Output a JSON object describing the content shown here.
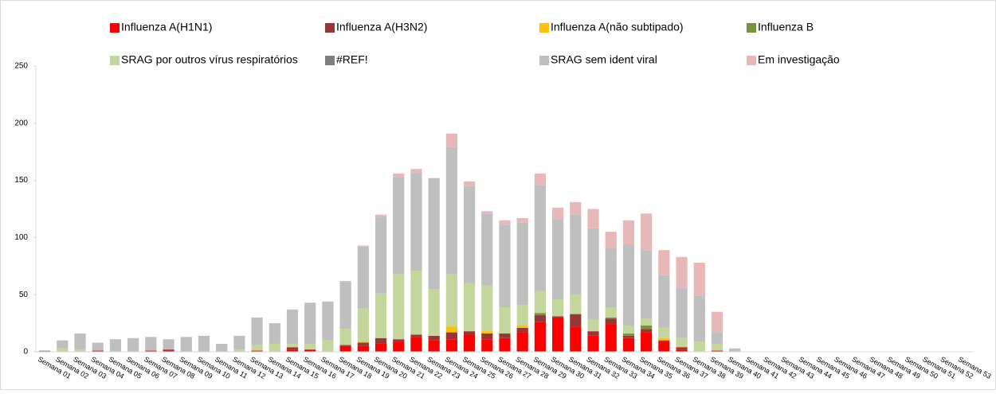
{
  "chart_data": {
    "type": "stacked_bar",
    "categories": [
      "Semana 01",
      "Semana 02",
      "Semana 03",
      "Semana 04",
      "Semana 05",
      "Semana 06",
      "Semana 07",
      "Semana 08",
      "Semana 09",
      "Semana 10",
      "Semana 11",
      "Semana 12",
      "Semana 13",
      "Semana 14",
      "Semana 15",
      "Semana 16",
      "Semana 17",
      "Semana 18",
      "Semana 19",
      "Semana 20",
      "Semana 21",
      "Semana 22",
      "Semana 23",
      "Semana 24",
      "Semana 25",
      "Semana 26",
      "Semana 27",
      "Semana 28",
      "Semana 29",
      "Semana 30",
      "Semana 31",
      "Semana 32",
      "Semana 33",
      "Semana 34",
      "Semana 35",
      "Semana 36",
      "Semana 37",
      "Semana 38",
      "Semana 39",
      "Semana 40",
      "Semana 41",
      "Semana 42",
      "Semana 43",
      "Semana 44",
      "Semana 45",
      "Semana 46",
      "Semana 47",
      "Semana 48",
      "Semana 49",
      "Semana 50",
      "Semana 51",
      "Semana 52",
      "Semana 53"
    ],
    "series": [
      {
        "name": "Influenza A(H1N1)",
        "color": "#ff0000",
        "values": [
          0,
          0,
          0,
          1,
          0,
          0,
          1,
          1,
          0,
          0,
          0,
          0,
          1,
          0,
          2,
          2,
          0,
          5,
          5,
          7,
          9,
          13,
          10,
          11,
          15,
          11,
          12,
          17,
          26,
          30,
          22,
          14,
          24,
          12,
          17,
          9,
          2,
          0,
          1,
          0,
          0,
          0,
          0,
          0,
          0,
          0,
          0,
          0,
          0,
          0,
          0,
          0,
          0
        ]
      },
      {
        "name": "Influenza A(H3N2)",
        "color": "#953735",
        "values": [
          0,
          0,
          0,
          0,
          0,
          0,
          0,
          1,
          0,
          0,
          0,
          0,
          0,
          0,
          2,
          0,
          0,
          1,
          3,
          5,
          2,
          2,
          4,
          6,
          3,
          5,
          4,
          4,
          6,
          1,
          11,
          4,
          5,
          2,
          3,
          1,
          2,
          0,
          0,
          0,
          0,
          0,
          0,
          0,
          0,
          0,
          0,
          0,
          0,
          0,
          0,
          0,
          0
        ]
      },
      {
        "name": "Influenza A(não subtipado)",
        "color": "#ffc000",
        "values": [
          0,
          0,
          0,
          0,
          0,
          0,
          0,
          0,
          0,
          0,
          0,
          0,
          0,
          0,
          0,
          0,
          0,
          0,
          1,
          0,
          0,
          0,
          0,
          5,
          0,
          2,
          0,
          2,
          0,
          0,
          0,
          0,
          0,
          0,
          0,
          2,
          1,
          0,
          0,
          0,
          0,
          0,
          0,
          0,
          0,
          0,
          0,
          0,
          0,
          0,
          0,
          0,
          0
        ]
      },
      {
        "name": "Influenza B",
        "color": "#77933c",
        "values": [
          0,
          0,
          0,
          0,
          0,
          0,
          0,
          0,
          0,
          0,
          0,
          0,
          0,
          0,
          0,
          0,
          0,
          0,
          0,
          0,
          0,
          0,
          0,
          0,
          0,
          0,
          0,
          0,
          2,
          0,
          0,
          0,
          1,
          2,
          3,
          0,
          0,
          0,
          0,
          0,
          0,
          0,
          0,
          0,
          0,
          0,
          0,
          0,
          0,
          0,
          0,
          0,
          0
        ]
      },
      {
        "name": "SRAG por outros vírus respiratórios",
        "color": "#c3d69b",
        "values": [
          0,
          3,
          2,
          0,
          0,
          0,
          0,
          0,
          0,
          0,
          0,
          2,
          5,
          7,
          3,
          5,
          10,
          14,
          29,
          39,
          57,
          56,
          41,
          46,
          42,
          40,
          23,
          18,
          19,
          15,
          17,
          10,
          9,
          7,
          6,
          9,
          7,
          9,
          6,
          0,
          0,
          0,
          0,
          0,
          0,
          0,
          0,
          0,
          0,
          0,
          0,
          0,
          0
        ]
      },
      {
        "name": "#REF!",
        "color": "#7f7f7f",
        "values": [
          1,
          0,
          0,
          0,
          0,
          0,
          0,
          0,
          0,
          0,
          0,
          0,
          0,
          0,
          0,
          0,
          0,
          0,
          0,
          0,
          0,
          0,
          0,
          0,
          0,
          0,
          0,
          0,
          0,
          0,
          0,
          0,
          0,
          0,
          0,
          0,
          0,
          0,
          0,
          0,
          0,
          0,
          0,
          0,
          0,
          0,
          0,
          0,
          0,
          0,
          0,
          0,
          0
        ]
      },
      {
        "name": "SRAG sem ident viral",
        "color": "#bfbfbf",
        "values": [
          0,
          7,
          14,
          7,
          11,
          12,
          12,
          9,
          13,
          14,
          7,
          12,
          24,
          18,
          30,
          36,
          34,
          41,
          54,
          67,
          85,
          85,
          97,
          111,
          85,
          63,
          72,
          72,
          93,
          70,
          70,
          80,
          52,
          71,
          60,
          46,
          44,
          40,
          10,
          3,
          0,
          0,
          0,
          0,
          0,
          0,
          0,
          0,
          0,
          0,
          0,
          0,
          0
        ]
      },
      {
        "name": "Em investigação",
        "color": "#e6b9b8",
        "values": [
          0,
          0,
          0,
          0,
          0,
          0,
          0,
          0,
          0,
          0,
          0,
          0,
          0,
          0,
          0,
          0,
          0,
          1,
          1,
          2,
          3,
          4,
          0,
          12,
          4,
          2,
          4,
          4,
          10,
          10,
          11,
          17,
          14,
          21,
          32,
          22,
          27,
          29,
          18,
          0,
          0,
          0,
          0,
          0,
          0,
          0,
          0,
          0,
          0,
          0,
          0,
          0,
          0
        ]
      }
    ],
    "ylim": [
      0,
      250
    ],
    "yticks": [
      0,
      50,
      100,
      150,
      200,
      250
    ],
    "grid": false,
    "legend": "top"
  }
}
